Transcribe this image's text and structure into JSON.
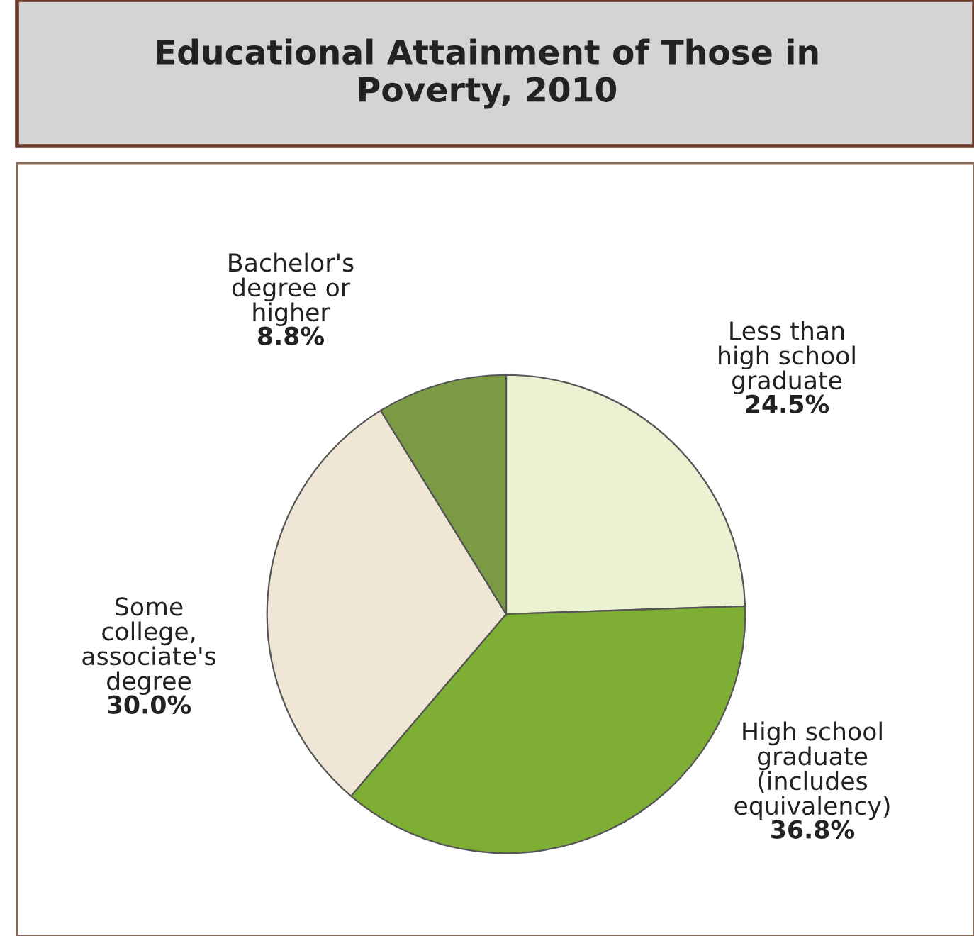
{
  "chart_data": {
    "type": "pie",
    "title": "Educational Attainment of Those in\nPoverty, 2010",
    "categories": [
      "Less than\nhigh school\ngraduate",
      "High school\ngraduate\n(includes\nequivalency)",
      "Some\ncollege,\nassociate's\ndegree",
      "Bachelor's\ndegree or\nhigher"
    ],
    "values": [
      24.5,
      36.8,
      30.0,
      8.8
    ],
    "value_labels": [
      "24.5%",
      "36.8%",
      "30.0%",
      "8.8%"
    ],
    "colors": [
      "#eaf2d2",
      "#7fae34",
      "#efe6d6",
      "#7b9a44"
    ]
  }
}
